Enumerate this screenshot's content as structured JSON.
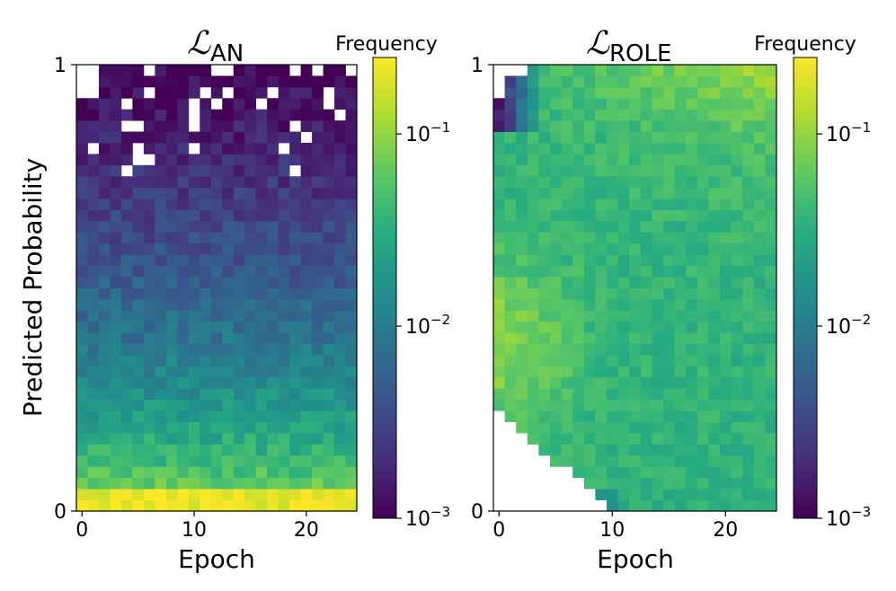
{
  "chart_data": [
    {
      "type": "heatmap",
      "title": "ℒ",
      "title_sub": "AN",
      "xlabel": "Epoch",
      "ylabel": "Predicted Probability",
      "xlim": [
        -0.5,
        24.5
      ],
      "ylim": [
        0,
        1
      ],
      "x_ticks": [
        "0",
        "10",
        "20"
      ],
      "x_tick_values": [
        0,
        10,
        20
      ],
      "y_ticks": [
        "0",
        "1"
      ],
      "y_tick_values": [
        0,
        1
      ],
      "n_epochs": 25,
      "n_bins": 40,
      "colormap": "viridis",
      "color_scale": "log",
      "colorbar": {
        "label": "Frequency",
        "range": [
          0.001,
          0.25
        ],
        "ticks": [
          "10",
          "10",
          "10"
        ],
        "tick_exponents": [
          "−3",
          "−2",
          "−1"
        ],
        "tick_values": [
          0.001,
          0.01,
          0.1
        ]
      },
      "description_values": "Frequency is highest (~0.2) in the lowest probability bins and decays toward ~0.001 near probability 1; many empty (white) bins above 0.75."
    },
    {
      "type": "heatmap",
      "title": "ℒ",
      "title_sub": "ROLE",
      "xlabel": "Epoch",
      "ylabel": "",
      "xlim": [
        -0.5,
        24.5
      ],
      "ylim": [
        0,
        1
      ],
      "x_ticks": [
        "0",
        "10",
        "20"
      ],
      "x_tick_values": [
        0,
        10,
        20
      ],
      "y_ticks": [
        "0",
        "1"
      ],
      "y_tick_values": [
        0,
        1
      ],
      "n_epochs": 25,
      "n_bins": 40,
      "colormap": "viridis",
      "color_scale": "log",
      "colorbar": {
        "label": "Frequency",
        "range": [
          0.001,
          0.25
        ],
        "ticks": [
          "10",
          "10",
          "10"
        ],
        "tick_exponents": [
          "−3",
          "−2",
          "−1"
        ],
        "tick_values": [
          0.001,
          0.01,
          0.1
        ]
      },
      "description_values": "Early epochs concentrate mass at mid probabilities (~0.1); later epochs shift mass toward probability 1 (~0.2 at top right); lower-left region is empty."
    }
  ]
}
